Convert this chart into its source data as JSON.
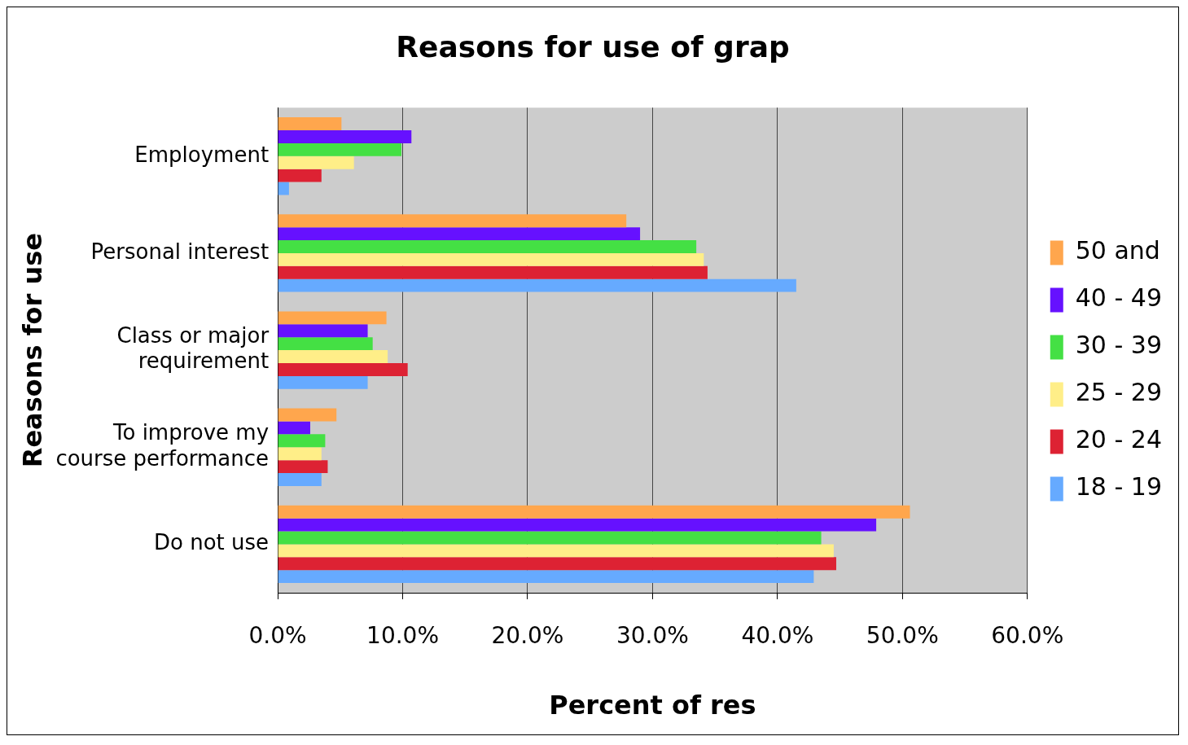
{
  "chart_data": {
    "type": "bar",
    "orientation": "horizontal",
    "title": "Reasons for use of grap",
    "xlabel": "Percent of res",
    "ylabel": "Reasons for use",
    "categories": [
      "Employment",
      "Personal interest",
      "Class or major requirement",
      "To improve my course performance",
      "Do not use"
    ],
    "series": [
      {
        "name": "50 and",
        "color": "#ffa64d",
        "values": [
          5.1,
          27.9,
          8.7,
          4.7,
          50.6
        ]
      },
      {
        "name": "40 - 49",
        "color": "#6611ff",
        "values": [
          10.7,
          29.0,
          7.2,
          2.6,
          47.9
        ]
      },
      {
        "name": "30 - 39",
        "color": "#44e044",
        "values": [
          9.9,
          33.5,
          7.6,
          3.8,
          43.5
        ]
      },
      {
        "name": "25 - 29",
        "color": "#ffee88",
        "values": [
          6.1,
          34.1,
          8.8,
          3.5,
          44.5
        ]
      },
      {
        "name": "20 - 24",
        "color": "#dd2233",
        "values": [
          3.5,
          34.4,
          10.4,
          4.0,
          44.7
        ]
      },
      {
        "name": "18 - 19",
        "color": "#66aaff",
        "values": [
          0.9,
          41.5,
          7.2,
          3.5,
          42.9
        ]
      }
    ],
    "xlim": [
      0,
      60
    ],
    "xticks": [
      {
        "value": 0,
        "label": "0.0%"
      },
      {
        "value": 10,
        "label": "10.0%"
      },
      {
        "value": 20,
        "label": "20.0%"
      },
      {
        "value": 30,
        "label": "30.0%"
      },
      {
        "value": 40,
        "label": "40.0%"
      },
      {
        "value": 50,
        "label": "50.0%"
      },
      {
        "value": 60,
        "label": "60.0%"
      }
    ],
    "grid": "x",
    "legend": "right"
  }
}
